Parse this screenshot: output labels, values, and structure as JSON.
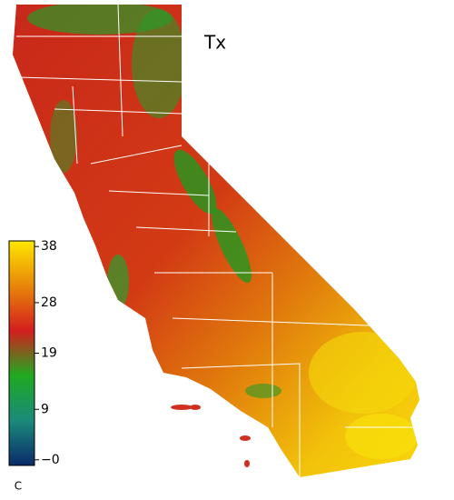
{
  "map": {
    "title": "Tx",
    "colorbar": {
      "unit": "C",
      "lim": [
        -1,
        39
      ],
      "ticks": [
        38,
        28,
        19,
        9,
        {
          "value": 0,
          "label": "−0"
        }
      ],
      "colors": [
        "#0a2a6a",
        "#1a8a7a",
        "#1faa20",
        "#d41e1e",
        "#e8860a",
        "#ffe600"
      ]
    }
  }
}
